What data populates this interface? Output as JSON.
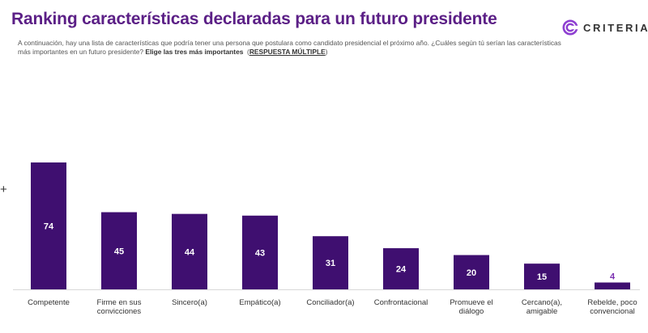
{
  "header": {
    "title": "Ranking características declaradas para un futuro presidente",
    "subtitle_text": "A continuación, hay una lista de características que podría tener una persona que postulara como candidato presidencial el próximo año. ¿Cuáles según tú serían las características más importantes en un futuro presidente?",
    "subtitle_bold": "Elige las tres más importantes",
    "subtitle_paren_open": "(",
    "subtitle_underline": "RESPUESTA MÚLTIPLE",
    "subtitle_paren_close": ")"
  },
  "logo": {
    "text": "CRITERIA",
    "icon": "criteria-logo-icon"
  },
  "side_marker": "+",
  "colors": {
    "title": "#5b1f86",
    "bar": "#3f0f70",
    "label_in": "#ffffff",
    "label_out": "#7a2fb0",
    "accent": "#8e3fd1",
    "baseline": "#d8d8d8"
  },
  "chart_data": {
    "type": "bar",
    "title": "Ranking características declaradas para un futuro presidente",
    "xlabel": "",
    "ylabel": "",
    "ylim": [
      0,
      74
    ],
    "grid": false,
    "categories": [
      [
        "Competente"
      ],
      [
        "Firme en sus",
        "convicciones"
      ],
      [
        "Sincero(a)"
      ],
      [
        "Empático(a)"
      ],
      [
        "Conciliador(a)"
      ],
      [
        "Confrontacional"
      ],
      [
        "Promueve el",
        "diálogo"
      ],
      [
        "Cercano(a),",
        "amigable"
      ],
      [
        "Rebelde, poco",
        "convencional"
      ]
    ],
    "values": [
      74,
      45,
      44,
      43,
      31,
      24,
      20,
      15,
      4
    ]
  }
}
